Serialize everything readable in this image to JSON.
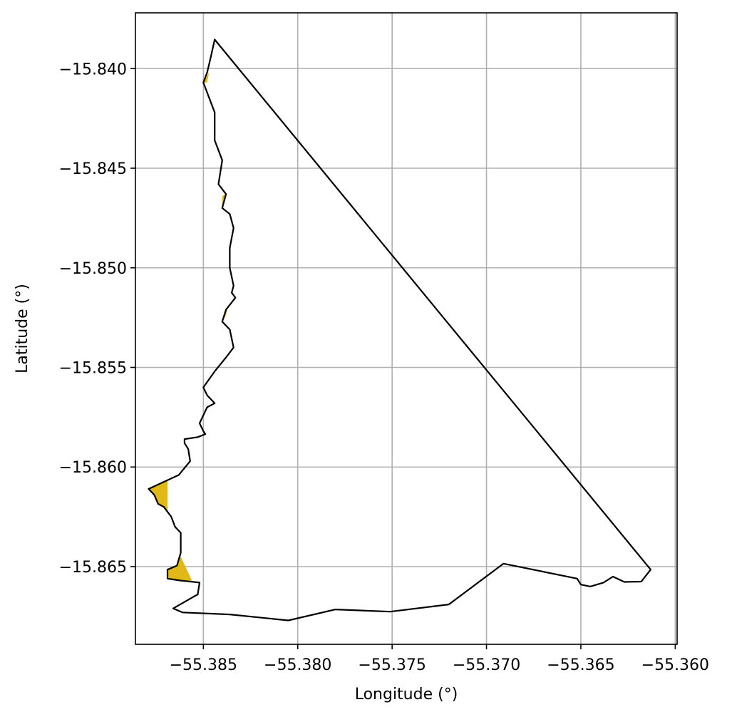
{
  "chart_data": {
    "type": "map",
    "xlabel": "Longitude (°)",
    "ylabel": "Latitude (°)",
    "xlim": [
      -55.3886,
      -55.3599
    ],
    "ylim": [
      -15.8689,
      -15.8372
    ],
    "grid": true,
    "x_ticks": [
      -55.385,
      -55.38,
      -55.375,
      -55.37,
      -55.365,
      -55.36
    ],
    "x_tick_labels": [
      "−55.385",
      "−55.380",
      "−55.375",
      "−55.370",
      "−55.365",
      "−55.360"
    ],
    "y_ticks": [
      -15.84,
      -15.845,
      -15.85,
      -15.855,
      -15.86,
      -15.865
    ],
    "y_tick_labels": [
      "−15.840",
      "−15.845",
      "−15.850",
      "−15.855",
      "−15.860",
      "−15.865"
    ],
    "colors": {
      "boundary": "#000000",
      "fill": "#e0b818",
      "grid": "#b0b0b0"
    },
    "boundary": [
      [
        -55.3844,
        -15.83854
      ],
      [
        -55.3613,
        -15.86515
      ],
      [
        -55.3618,
        -15.86575
      ],
      [
        -55.3627,
        -15.86577
      ],
      [
        -55.3633,
        -15.8655
      ],
      [
        -55.3638,
        -15.8658
      ],
      [
        -55.3645,
        -15.866
      ],
      [
        -55.365,
        -15.8659
      ],
      [
        -55.3652,
        -15.8656
      ],
      [
        -55.3691,
        -15.86485
      ],
      [
        -55.372,
        -15.8669
      ],
      [
        -55.3751,
        -15.86726
      ],
      [
        -55.378,
        -15.86715
      ],
      [
        -55.3805,
        -15.8677
      ],
      [
        -55.3836,
        -15.8674
      ],
      [
        -55.3861,
        -15.8673
      ],
      [
        -55.3866,
        -15.8671
      ],
      [
        -55.3855,
        -15.8665
      ],
      [
        -55.3853,
        -15.8664
      ],
      [
        -55.3852,
        -15.8658
      ],
      [
        -55.3862,
        -15.8657
      ],
      [
        -55.3869,
        -15.8656
      ],
      [
        -55.3869,
        -15.86515
      ],
      [
        -55.3864,
        -15.86495
      ],
      [
        -55.3862,
        -15.8643
      ],
      [
        -55.3862,
        -15.8633
      ],
      [
        -55.3865,
        -15.863
      ],
      [
        -55.3867,
        -15.8625
      ],
      [
        -55.3871,
        -15.862
      ],
      [
        -55.3874,
        -15.86185
      ],
      [
        -55.3876,
        -15.8614
      ],
      [
        -55.3879,
        -15.8611
      ],
      [
        -55.3863,
        -15.8604
      ],
      [
        -55.3857,
        -15.8597
      ],
      [
        -55.3858,
        -15.8591
      ],
      [
        -55.386,
        -15.8588
      ],
      [
        -55.386,
        -15.8586
      ],
      [
        -55.3853,
        -15.8585
      ],
      [
        -55.3849,
        -15.85835
      ],
      [
        -55.385,
        -15.8582
      ],
      [
        -55.3852,
        -15.8578
      ],
      [
        -55.3848,
        -15.857
      ],
      [
        -55.3844,
        -15.8568
      ],
      [
        -55.3848,
        -15.8564
      ],
      [
        -55.385,
        -15.856
      ],
      [
        -55.3844,
        -15.8552
      ],
      [
        -55.3838,
        -15.8545
      ],
      [
        -55.3834,
        -15.854
      ],
      [
        -55.3836,
        -15.8531
      ],
      [
        -55.384,
        -15.8527
      ],
      [
        -55.3838,
        -15.8521
      ],
      [
        -55.3833,
        -15.8515
      ],
      [
        -55.3835,
        -15.85125
      ],
      [
        -55.3834,
        -15.8509
      ],
      [
        -55.3836,
        -15.85
      ],
      [
        -55.3836,
        -15.849
      ],
      [
        -55.3834,
        -15.848
      ],
      [
        -55.3836,
        -15.8473
      ],
      [
        -55.384,
        -15.847
      ],
      [
        -55.3838,
        -15.8463
      ],
      [
        -55.3842,
        -15.8458
      ],
      [
        -55.384,
        -15.8446
      ],
      [
        -55.3844,
        -15.8436
      ],
      [
        -55.3844,
        -15.8422
      ],
      [
        -55.3848,
        -15.8412
      ],
      [
        -55.385,
        -15.8407
      ],
      [
        -55.3848,
        -15.8402
      ],
      [
        -55.3846,
        -15.8394
      ],
      [
        -55.3844,
        -15.83854
      ]
    ],
    "fill_regions": [
      [
        [
          -55.3879,
          -15.8611
        ],
        [
          -55.3869,
          -15.8607
        ],
        [
          -55.3869,
          -15.8623
        ],
        [
          -55.3871,
          -15.862
        ],
        [
          -55.3874,
          -15.86185
        ],
        [
          -55.3876,
          -15.8614
        ]
      ],
      [
        [
          -55.3862,
          -15.8645
        ],
        [
          -55.3856,
          -15.8657
        ],
        [
          -55.3862,
          -15.8657
        ],
        [
          -55.3869,
          -15.8656
        ],
        [
          -55.3869,
          -15.86515
        ],
        [
          -55.3864,
          -15.86495
        ]
      ],
      [
        [
          -55.3847,
          -15.8402
        ],
        [
          -55.3845,
          -15.8392
        ],
        [
          -55.3848,
          -15.8407
        ],
        [
          -55.385,
          -15.8407
        ]
      ],
      [
        [
          -55.384,
          -15.8464
        ],
        [
          -55.3838,
          -15.8463
        ],
        [
          -55.384,
          -15.847
        ]
      ],
      [
        [
          -55.384,
          -15.8527
        ],
        [
          -55.3837,
          -15.8519
        ],
        [
          -55.3838,
          -15.8524
        ]
      ]
    ]
  }
}
